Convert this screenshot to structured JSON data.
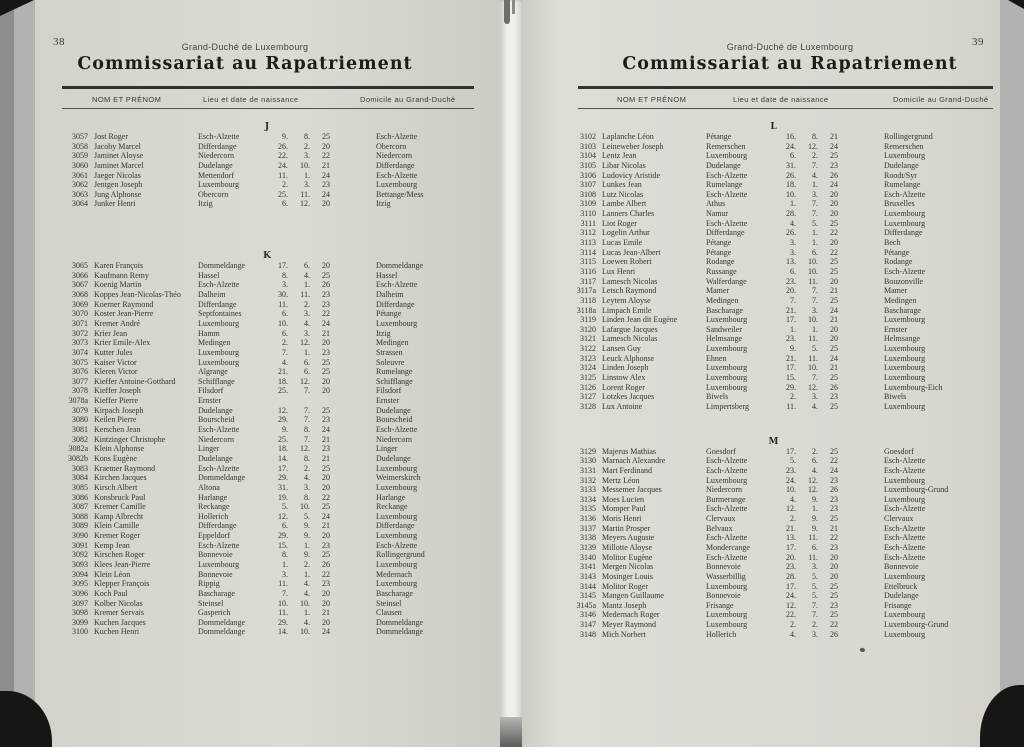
{
  "doc": {
    "region_label": "Grand-Duché de Luxembourg",
    "title": "Commissariat au Rapatriement"
  },
  "columns": {
    "name": "NOM ET PRÉNOM",
    "birth": "Lieu et date de naissance",
    "domicile": "Domicile au Grand-Duché"
  },
  "pages": [
    {
      "page_number": "38",
      "sections": [
        {
          "letter": "J",
          "rows": [
            [
              "3057",
              "Jost Roger",
              "Esch-Alzette",
              "9. 8. 25",
              "Esch-Alzette"
            ],
            [
              "3058",
              "Jacoby Marcel",
              "Differdange",
              "26. 2. 20",
              "Obercorn"
            ],
            [
              "3059",
              "Jaminet Aloyse",
              "Niedercorn",
              "22. 3. 22",
              "Niedercorn"
            ],
            [
              "3060",
              "Jaminet Marcel",
              "Dudelange",
              "24. 10. 21",
              "Differdange"
            ],
            [
              "3061",
              "Jaeger Nicolas",
              "Mettendorf",
              "11. 1. 24",
              "Esch-Alzette"
            ],
            [
              "3062",
              "Jentgen Joseph",
              "Luxembourg",
              "2. 3. 23",
              "Luxembourg"
            ],
            [
              "3063",
              "Jung Alphonse",
              "Obercorn",
              "25. 11. 24",
              "Bettange/Mess"
            ],
            [
              "3064",
              "Junker Henri",
              "Itzig",
              "6. 12. 20",
              "Itzig"
            ]
          ]
        },
        {
          "letter": "K",
          "rows": [
            [
              "3065",
              "Karen François",
              "Dommeldange",
              "17. 6. 20",
              "Dommeldange"
            ],
            [
              "3066",
              "Kaufmann Remy",
              "Hassel",
              "8. 4. 25",
              "Hassel"
            ],
            [
              "3067",
              "Koenig Martin",
              "Esch-Alzette",
              "3. 1. 26",
              "Esch-Alzette"
            ],
            [
              "3068",
              "Koppes Jean-Nicolas-Théo",
              "Dalheim",
              "30. 11. 23",
              "Dalheim"
            ],
            [
              "3069",
              "Koerner Raymond",
              "Differdange",
              "11. 2. 23",
              "Differdange"
            ],
            [
              "3070",
              "Koster Jean-Pierre",
              "Septfontaines",
              "6. 3. 22",
              "Pétange"
            ],
            [
              "3071",
              "Kremer André",
              "Luxembourg",
              "10. 4. 24",
              "Luxembourg"
            ],
            [
              "3072",
              "Krier Jean",
              "Hamm",
              "6. 3. 21",
              "Itzig"
            ],
            [
              "3073",
              "Krier Emile-Alex",
              "Medingen",
              "2. 12. 20",
              "Medingen"
            ],
            [
              "3074",
              "Kutter Jules",
              "Luxembourg",
              "7. 1. 23",
              "Strassen"
            ],
            [
              "3075",
              "Kaiser Victor",
              "Luxembourg",
              "4. 6. 25",
              "Soleuvre"
            ],
            [
              "3076",
              "Kleren Victor",
              "Algrange",
              "21. 6. 25",
              "Rumelange"
            ],
            [
              "3077",
              "Kieffer Antoine-Gotthard",
              "Schifflange",
              "18. 12. 20",
              "Schifflange"
            ],
            [
              "3078",
              "Kieffer Joseph",
              "Filsdorf",
              "25. 7. 20",
              "Filsdorf"
            ],
            [
              "3078a",
              "Kieffer Pierre",
              "Ernster",
              "",
              "Ernster"
            ],
            [
              "3079",
              "Kirpach Joseph",
              "Dudelange",
              "12. 7. 25",
              "Dudelange"
            ],
            [
              "3080",
              "Keilen Pierre",
              "Bourscheid",
              "29. 7. 23",
              "Bourscheid"
            ],
            [
              "3081",
              "Kerschen Jean",
              "Esch-Alzette",
              "9. 8. 24",
              "Esch-Alzette"
            ],
            [
              "3082",
              "Kintzinger Christophe",
              "Niedercorn",
              "25. 7. 21",
              "Niedercorn"
            ],
            [
              "3082a",
              "Klein Alphonse",
              "Linger",
              "18. 12. 23",
              "Linger"
            ],
            [
              "3082b",
              "Kons Eugène",
              "Dudelange",
              "14. 8. 21",
              "Dudelange"
            ],
            [
              "3083",
              "Kraemer Raymond",
              "Esch-Alzette",
              "17. 2. 25",
              "Luxembourg"
            ],
            [
              "3084",
              "Kirchen Jacques",
              "Dommeldange",
              "29. 4. 20",
              "Weimerskirch"
            ],
            [
              "3085",
              "Kirsch Albert",
              "Altona",
              "31. 3. 20",
              "Luxembourg"
            ],
            [
              "3086",
              "Konsbruck Paul",
              "Harlange",
              "19. 8. 22",
              "Harlange"
            ],
            [
              "3087",
              "Kremer Camille",
              "Reckange",
              "5. 10. 25",
              "Reckange"
            ],
            [
              "3088",
              "Kamp Albrecht",
              "Hollerich",
              "12. 5. 24",
              "Luxembourg"
            ],
            [
              "3089",
              "Klein Camille",
              "Differdange",
              "6. 9. 21",
              "Differdange"
            ],
            [
              "3090",
              "Kremer Roger",
              "Eppeldorf",
              "29. 9. 20",
              "Luxembourg"
            ],
            [
              "3091",
              "Kemp Jean",
              "Esch-Alzette",
              "15. 1. 23",
              "Esch-Alzette"
            ],
            [
              "3092",
              "Kirschen Roger",
              "Bonnevoie",
              "8. 9. 25",
              "Rollingergrund"
            ],
            [
              "3093",
              "Klees Jean-Pierre",
              "Luxembourg",
              "1. 2. 26",
              "Luxembourg"
            ],
            [
              "3094",
              "Klein Léon",
              "Bonnevoie",
              "3. 1. 22",
              "Medernach"
            ],
            [
              "3095",
              "Klepper François",
              "Rippig",
              "11. 4. 23",
              "Luxembourg"
            ],
            [
              "3096",
              "Koch Paul",
              "Bascharage",
              "7. 4. 20",
              "Bascharage"
            ],
            [
              "3097",
              "Kolber Nicolas",
              "Steinsel",
              "10. 10. 20",
              "Steinsel"
            ],
            [
              "3098",
              "Kremer Servais",
              "Gasperich",
              "11. 1. 21",
              "Clausen"
            ],
            [
              "3099",
              "Kuchen Jacques",
              "Dommeldange",
              "29. 4. 20",
              "Dommeldange"
            ],
            [
              "3100",
              "Kuchen Henri",
              "Dommeldange",
              "14. 10. 24",
              "Dommeldange"
            ]
          ]
        }
      ]
    },
    {
      "page_number": "39",
      "sections": [
        {
          "letter": "L",
          "rows": [
            [
              "3102",
              "Laplanche Léon",
              "Pétange",
              "16. 8. 21",
              "Rollingergrund"
            ],
            [
              "3103",
              "Leineweber Joseph",
              "Remerschen",
              "24. 12. 24",
              "Remerschen"
            ],
            [
              "3104",
              "Lentz Jean",
              "Luxembourg",
              "6. 2. 25",
              "Luxembourg"
            ],
            [
              "3105",
              "Libar Nicolas",
              "Dudelange",
              "31. 7. 23",
              "Dudelange"
            ],
            [
              "3106",
              "Ludovicy Aristide",
              "Esch-Alzette",
              "26. 4. 26",
              "Roodt/Syr"
            ],
            [
              "3107",
              "Lunkes Jean",
              "Rumelange",
              "18. 1. 24",
              "Rumelange"
            ],
            [
              "3108",
              "Lutz Nicolas",
              "Esch-Alzette",
              "10. 3. 20",
              "Esch-Alzette"
            ],
            [
              "3109",
              "Lambe Albert",
              "Athus",
              "1. 7. 20",
              "Bruxelles"
            ],
            [
              "3110",
              "Lanners Charles",
              "Namur",
              "28. 7. 20",
              "Luxembourg"
            ],
            [
              "3111",
              "Liot Roger",
              "Esch-Alzette",
              "4. 5. 25",
              "Luxembourg"
            ],
            [
              "3112",
              "Logelin Arthur",
              "Differdange",
              "26. 1. 22",
              "Differdange"
            ],
            [
              "3113",
              "Lucas Emile",
              "Pétange",
              "3. 1. 20",
              "Bech"
            ],
            [
              "3114",
              "Lucas Jean-Albert",
              "Pétange",
              "3. 6. 22",
              "Pétange"
            ],
            [
              "3115",
              "Loewen Robert",
              "Rodange",
              "13. 10. 25",
              "Rodange"
            ],
            [
              "3116",
              "Lux Henri",
              "Russange",
              "6. 10. 25",
              "Esch-Alzette"
            ],
            [
              "3117",
              "Lamesch Nicolas",
              "Walferdange",
              "23. 11. 20",
              "Bouzonville"
            ],
            [
              "3117a",
              "Letsch Raymond",
              "Mamer",
              "20. 7. 21",
              "Mamer"
            ],
            [
              "3118",
              "Leytem Aloyse",
              "Medingen",
              "7. 7. 25",
              "Medingen"
            ],
            [
              "3118a",
              "Limpach Emile",
              "Bascharage",
              "21. 3. 24",
              "Bascharage"
            ],
            [
              "3119",
              "Linden Jean dit Eugène",
              "Luxembourg",
              "17. 10. 21",
              "Luxembourg"
            ],
            [
              "3120",
              "Lafargue Jacques",
              "Sandweiler",
              "1. 1. 20",
              "Ernster"
            ],
            [
              "3121",
              "Lamesch Nicolas",
              "Helmsange",
              "23. 11. 20",
              "Helmsange"
            ],
            [
              "3122",
              "Lansen Guy",
              "Luxembourg",
              "9. 5. 25",
              "Luxembourg"
            ],
            [
              "3123",
              "Leuck Alphonse",
              "Ehnen",
              "21. 11. 24",
              "Luxembourg"
            ],
            [
              "3124",
              "Linden Joseph",
              "Luxembourg",
              "17. 10. 21",
              "Luxembourg"
            ],
            [
              "3125",
              "Linstow Alex",
              "Luxembourg",
              "15. 7. 25",
              "Luxembourg"
            ],
            [
              "3126",
              "Lorent Roger",
              "Luxembourg",
              "29. 12. 26",
              "Luxembourg-Eich"
            ],
            [
              "3127",
              "Lotzkes Jacques",
              "Biwels",
              "2. 3. 23",
              "Biwels"
            ],
            [
              "3128",
              "Lux Antoine",
              "Limpertsberg",
              "11. 4. 25",
              "Luxembourg"
            ]
          ]
        },
        {
          "letter": "M",
          "rows": [
            [
              "3129",
              "Majerus Mathias",
              "Goesdorf",
              "17. 2. 25",
              "Goesdorf"
            ],
            [
              "3130",
              "Marnach Alexandre",
              "Esch-Alzette",
              "5. 6. 22",
              "Esch-Alzette"
            ],
            [
              "3131",
              "Mart Ferdinand",
              "Esch-Alzette",
              "23. 4. 24",
              "Esch-Alzette"
            ],
            [
              "3132",
              "Mertz Léon",
              "Luxembourg",
              "24. 12. 23",
              "Luxembourg"
            ],
            [
              "3133",
              "Messemer Jacques",
              "Niedercorn",
              "10. 12. 26",
              "Luxembourg-Grund"
            ],
            [
              "3134",
              "Moes Lucien",
              "Burmerange",
              "4. 9. 23",
              "Luxembourg"
            ],
            [
              "3135",
              "Momper Paul",
              "Esch-Alzette",
              "12. 1. 23",
              "Esch-Alzette"
            ],
            [
              "3136",
              "Moris Henri",
              "Clervaux",
              "2. 9. 25",
              "Clervaux"
            ],
            [
              "3137",
              "Martin Prosper",
              "Belvaux",
              "21. 9. 21",
              "Esch-Alzette"
            ],
            [
              "3138",
              "Meyers Auguste",
              "Esch-Alzette",
              "13. 11. 22",
              "Esch-Alzette"
            ],
            [
              "3139",
              "Millotte Aloyse",
              "Mondercange",
              "17. 6. 23",
              "Esch-Alzette"
            ],
            [
              "3140",
              "Molitor Eugène",
              "Esch-Alzette",
              "20. 11. 20",
              "Esch-Alzette"
            ],
            [
              "3141",
              "Mergen Nicolas",
              "Bonnevoie",
              "23. 3. 20",
              "Bonnevoie"
            ],
            [
              "3143",
              "Mosinger Louis",
              "Wasserbillig",
              "28. 5. 20",
              "Luxembourg"
            ],
            [
              "3144",
              "Molitor Roger",
              "Luxembourg",
              "17. 5. 25",
              "Ettelbruck"
            ],
            [
              "3145",
              "Mangen Guillaume",
              "Bonnevoie",
              "24. 5. 25",
              "Dudelange"
            ],
            [
              "3145a",
              "Mantz Joseph",
              "Frisange",
              "12. 7. 23",
              "Frisange"
            ],
            [
              "3146",
              "Medernach Roger",
              "Luxembourg",
              "22. 7. 25",
              "Luxembourg"
            ],
            [
              "3147",
              "Meyer Raymond",
              "Luxembourg",
              "2. 2. 22",
              "Luxembourg-Grund"
            ],
            [
              "3148",
              "Mich Norbert",
              "Hollerich",
              "4. 3. 26",
              "Luxembourg"
            ]
          ]
        }
      ]
    }
  ]
}
